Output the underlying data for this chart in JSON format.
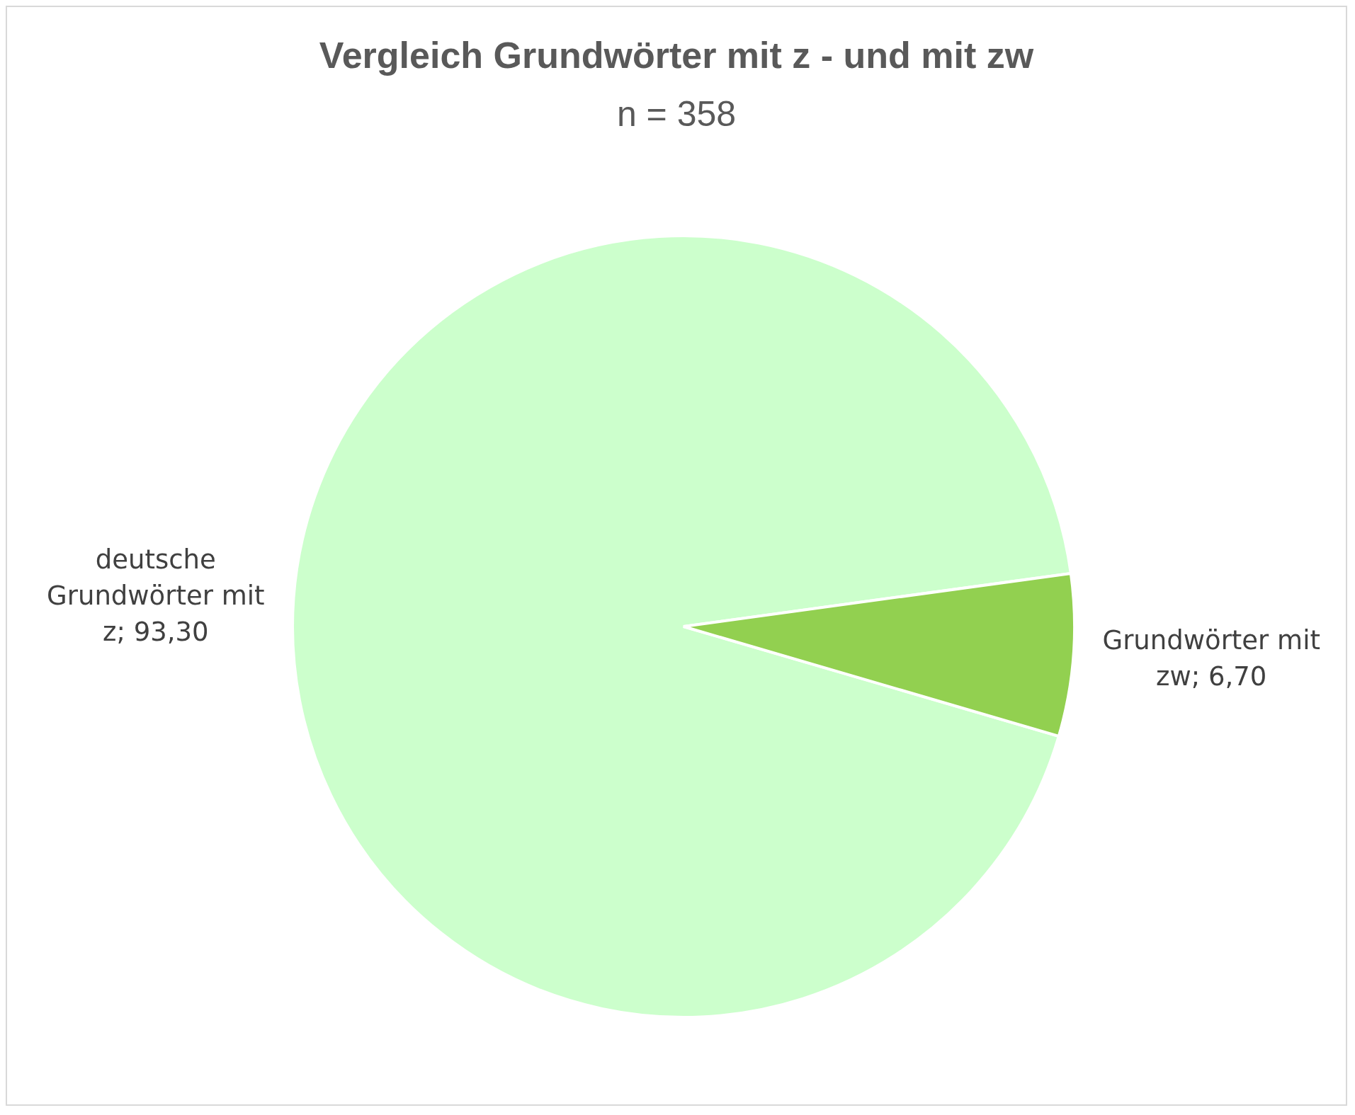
{
  "chart_data": {
    "type": "pie",
    "title": "Vergleich Grundwörter mit z - und mit zw",
    "subtitle": "n = 358",
    "categories": [
      "deutsche Grundwörter mit z",
      "Grundwörter mit zw"
    ],
    "values": [
      93.3,
      6.7
    ],
    "value_labels": [
      "93,30",
      "6,70"
    ],
    "colors": [
      "#ccffcc",
      "#92d050"
    ],
    "legend": false
  }
}
